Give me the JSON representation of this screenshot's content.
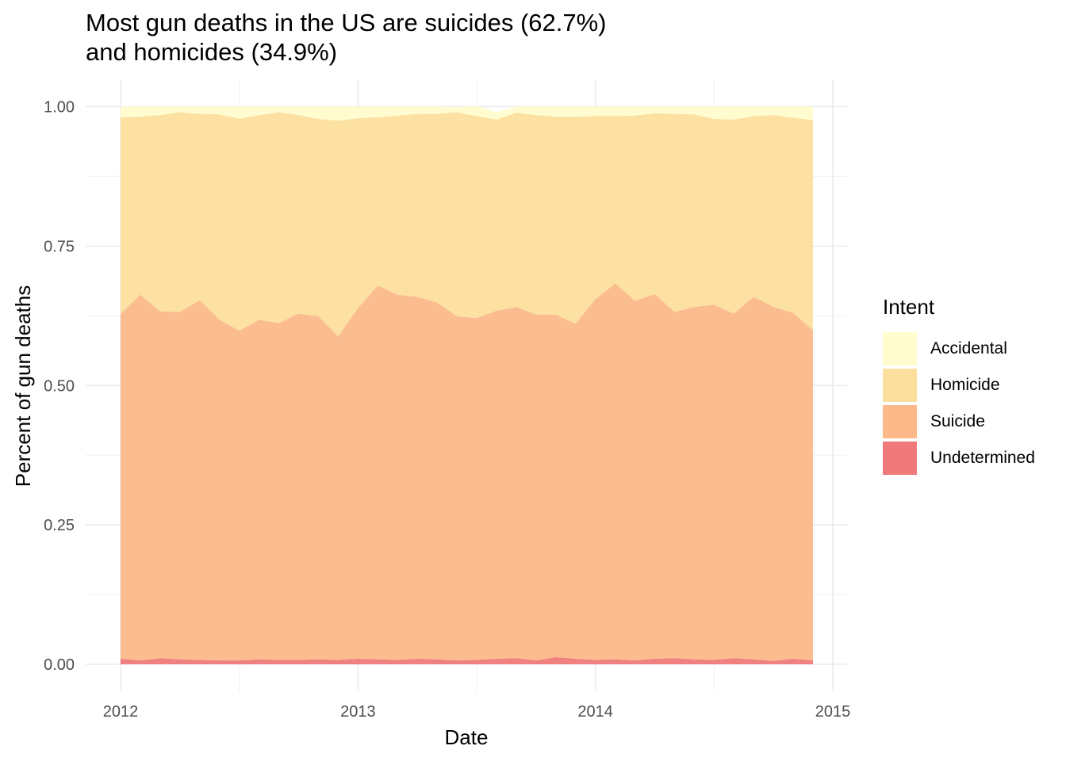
{
  "chart_data": {
    "type": "area",
    "stacked": true,
    "title": "Most gun deaths in the US are suicides (62.7%)\nand homicides (34.9%)",
    "xlabel": "Date",
    "ylabel": "Percent of gun deaths",
    "x_ticks": [
      "2012",
      "2013",
      "2014",
      "2015"
    ],
    "y_ticks": [
      "0.00",
      "0.25",
      "0.50",
      "0.75",
      "1.00"
    ],
    "xlim": [
      "2012-01",
      "2015-01"
    ],
    "ylim": [
      0,
      1
    ],
    "grid": true,
    "legend_title": "Intent",
    "legend_position": "right",
    "x": [
      "2012-01",
      "2012-02",
      "2012-03",
      "2012-04",
      "2012-05",
      "2012-06",
      "2012-07",
      "2012-08",
      "2012-09",
      "2012-10",
      "2012-11",
      "2012-12",
      "2013-01",
      "2013-02",
      "2013-03",
      "2013-04",
      "2013-05",
      "2013-06",
      "2013-07",
      "2013-08",
      "2013-09",
      "2013-10",
      "2013-11",
      "2013-12",
      "2014-01",
      "2014-02",
      "2014-03",
      "2014-04",
      "2014-05",
      "2014-06",
      "2014-07",
      "2014-08",
      "2014-09",
      "2014-10",
      "2014-11",
      "2014-12"
    ],
    "series": [
      {
        "name": "Undetermined",
        "color": "#F07A7A",
        "values": [
          0.01,
          0.007,
          0.011,
          0.009,
          0.008,
          0.007,
          0.007,
          0.009,
          0.008,
          0.008,
          0.009,
          0.008,
          0.01,
          0.009,
          0.008,
          0.01,
          0.009,
          0.007,
          0.008,
          0.01,
          0.011,
          0.007,
          0.013,
          0.01,
          0.008,
          0.009,
          0.007,
          0.01,
          0.011,
          0.009,
          0.008,
          0.011,
          0.009,
          0.006,
          0.01,
          0.007
        ]
      },
      {
        "name": "Suicide",
        "color": "#FBB989",
        "values": [
          0.618,
          0.656,
          0.622,
          0.623,
          0.645,
          0.611,
          0.591,
          0.609,
          0.604,
          0.621,
          0.615,
          0.58,
          0.629,
          0.67,
          0.655,
          0.649,
          0.64,
          0.617,
          0.613,
          0.624,
          0.63,
          0.62,
          0.614,
          0.601,
          0.647,
          0.674,
          0.645,
          0.654,
          0.621,
          0.632,
          0.637,
          0.618,
          0.65,
          0.635,
          0.62,
          0.592
        ]
      },
      {
        "name": "Homicide",
        "color": "#FCDF9D",
        "values": [
          0.353,
          0.319,
          0.352,
          0.358,
          0.334,
          0.368,
          0.38,
          0.367,
          0.378,
          0.356,
          0.354,
          0.387,
          0.34,
          0.302,
          0.321,
          0.328,
          0.338,
          0.366,
          0.362,
          0.343,
          0.348,
          0.358,
          0.355,
          0.371,
          0.328,
          0.3,
          0.332,
          0.324,
          0.355,
          0.345,
          0.333,
          0.348,
          0.324,
          0.344,
          0.35,
          0.377
        ]
      },
      {
        "name": "Accidental",
        "color": "#FFFDCE",
        "values": [
          0.019,
          0.018,
          0.015,
          0.01,
          0.013,
          0.014,
          0.022,
          0.015,
          0.01,
          0.015,
          0.022,
          0.025,
          0.021,
          0.019,
          0.016,
          0.013,
          0.013,
          0.009,
          0.018,
          0.013,
          0.011,
          0.015,
          0.018,
          0.018,
          0.017,
          0.017,
          0.016,
          0.012,
          0.013,
          0.014,
          0.022,
          0.023,
          0.017,
          0.015,
          0.02,
          0.024
        ]
      }
    ]
  }
}
